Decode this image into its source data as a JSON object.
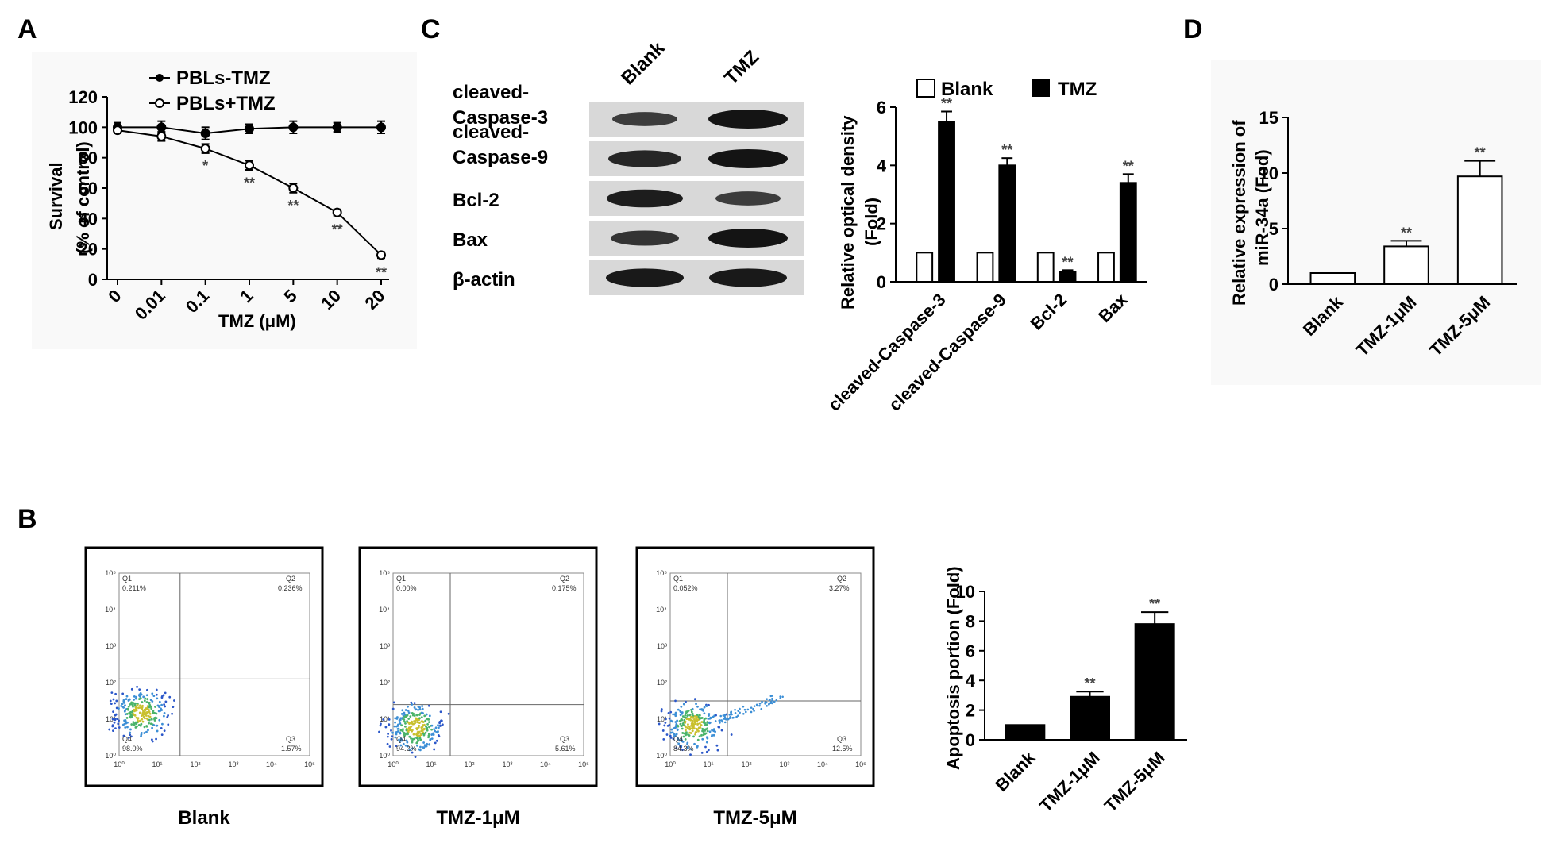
{
  "panels": {
    "a": "A",
    "b": "B",
    "c": "C",
    "d": "D"
  },
  "colors": {
    "bar_fill": "#000000",
    "bar_empty": "#ffffff",
    "blot_dark": "#141414",
    "blot_bg": "#d8d8d8",
    "stars": "#444444"
  },
  "chart_data": [
    {
      "id": "A",
      "type": "line",
      "x": [
        "0",
        "0.01",
        "0.1",
        "1",
        "5",
        "10",
        "20"
      ],
      "xlabel": "TMZ (μM)",
      "ylabel_line1": "Survival",
      "ylabel_line2": "(% of control)",
      "ylim": [
        0,
        120
      ],
      "yticks": [
        "0",
        "20",
        "40",
        "60",
        "80",
        "100",
        "120"
      ],
      "legend_position": "top-left",
      "series": [
        {
          "name": "PBLs-TMZ",
          "marker": "filled",
          "values": [
            100,
            100,
            96,
            99,
            100,
            100,
            100
          ],
          "errors": [
            3,
            4,
            4,
            3,
            4,
            3,
            4
          ]
        },
        {
          "name": "PBLs+TMZ",
          "marker": "open",
          "values": [
            98,
            94,
            86,
            75,
            60,
            44,
            16
          ],
          "errors": [
            2,
            3,
            3,
            3,
            3,
            2,
            2
          ],
          "significance": [
            "",
            "",
            "*",
            "**",
            "**",
            "**",
            "**"
          ]
        }
      ]
    },
    {
      "id": "C-bar",
      "type": "bar",
      "categories": [
        "cleaved-Caspase-3",
        "cleaved-Caspase-9",
        "Bcl-2",
        "Bax"
      ],
      "ylabel_line1": "Relative optical density",
      "ylabel_line2": "(Fold)",
      "ylim": [
        0,
        6
      ],
      "yticks": [
        "0",
        "2",
        "4",
        "6"
      ],
      "legend_position": "top",
      "series": [
        {
          "name": "Blank",
          "fill": "white",
          "values": [
            1,
            1,
            1,
            1
          ],
          "errors": [
            0,
            0,
            0,
            0
          ]
        },
        {
          "name": "TMZ",
          "fill": "black",
          "values": [
            5.5,
            4.0,
            0.35,
            3.4
          ],
          "errors": [
            0.35,
            0.25,
            0.05,
            0.3
          ],
          "significance": [
            "**",
            "**",
            "**",
            "**"
          ]
        }
      ]
    },
    {
      "id": "D",
      "type": "bar",
      "categories": [
        "Blank",
        "TMZ-1μM",
        "TMZ-5μM"
      ],
      "ylabel_line1": "Relative expression of",
      "ylabel_line2": "miR-34a (Fod)",
      "ylim": [
        0,
        15
      ],
      "yticks": [
        "0",
        "5",
        "10",
        "15"
      ],
      "series": [
        {
          "name": "",
          "fill": "white",
          "values": [
            1,
            3.4,
            9.7
          ],
          "errors": [
            0,
            0.5,
            1.4
          ],
          "significance": [
            "",
            "**",
            "**"
          ]
        }
      ]
    },
    {
      "id": "B-bar",
      "type": "bar",
      "categories": [
        "Blank",
        "TMZ-1μM",
        "TMZ-5μM"
      ],
      "ylabel": "Apoptosis portion (Fold)",
      "ylim": [
        0,
        10
      ],
      "yticks": [
        "0",
        "2",
        "4",
        "6",
        "8",
        "10"
      ],
      "series": [
        {
          "name": "",
          "fill": "black",
          "values": [
            1,
            2.9,
            7.8
          ],
          "errors": [
            0,
            0.35,
            0.8
          ],
          "significance": [
            "",
            "**",
            "**"
          ]
        }
      ]
    }
  ],
  "blot": {
    "lanes": [
      "Blank",
      "TMZ"
    ],
    "rows": [
      {
        "label_line1": "cleaved-",
        "label_line2": "Caspase-3",
        "intensity": [
          0.55,
          1.0
        ]
      },
      {
        "label_line1": "cleaved-",
        "label_line2": "Caspase-9",
        "intensity": [
          0.8,
          1.0
        ]
      },
      {
        "label_line1": "Bcl-2",
        "label_line2": "",
        "intensity": [
          0.9,
          0.55
        ]
      },
      {
        "label_line1": "Bax",
        "label_line2": "",
        "intensity": [
          0.65,
          1.0
        ]
      },
      {
        "label_line1": "β-actin",
        "label_line2": "",
        "intensity": [
          0.95,
          0.95
        ]
      }
    ]
  },
  "flow": {
    "axis_ticks": [
      "10⁰",
      "10¹",
      "10²",
      "10³",
      "10⁴",
      "10⁵"
    ],
    "plots": [
      {
        "caption": "Blank",
        "q1": "Q1",
        "q1_val": "0.211%",
        "q2": "Q2",
        "q2_val": "0.236%",
        "q3": "Q3",
        "q3_val": "1.57%",
        "q4": "Q4",
        "q4_val": "98.0%",
        "gate_x": 0.32,
        "gate_y": 0.42
      },
      {
        "caption": "TMZ-1μM",
        "q1": "Q1",
        "q1_val": "0.00%",
        "q2": "Q2",
        "q2_val": "0.175%",
        "q3": "Q3",
        "q3_val": "5.61%",
        "q4": "Q4",
        "q4_val": "94.2%",
        "gate_x": 0.3,
        "gate_y": 0.28
      },
      {
        "caption": "TMZ-5μM",
        "q1": "Q1",
        "q1_val": "0.052%",
        "q2": "Q2",
        "q2_val": "3.27%",
        "q3": "Q3",
        "q3_val": "12.5%",
        "q4": "Q4",
        "q4_val": "84.3%",
        "gate_x": 0.3,
        "gate_y": 0.3
      }
    ]
  }
}
